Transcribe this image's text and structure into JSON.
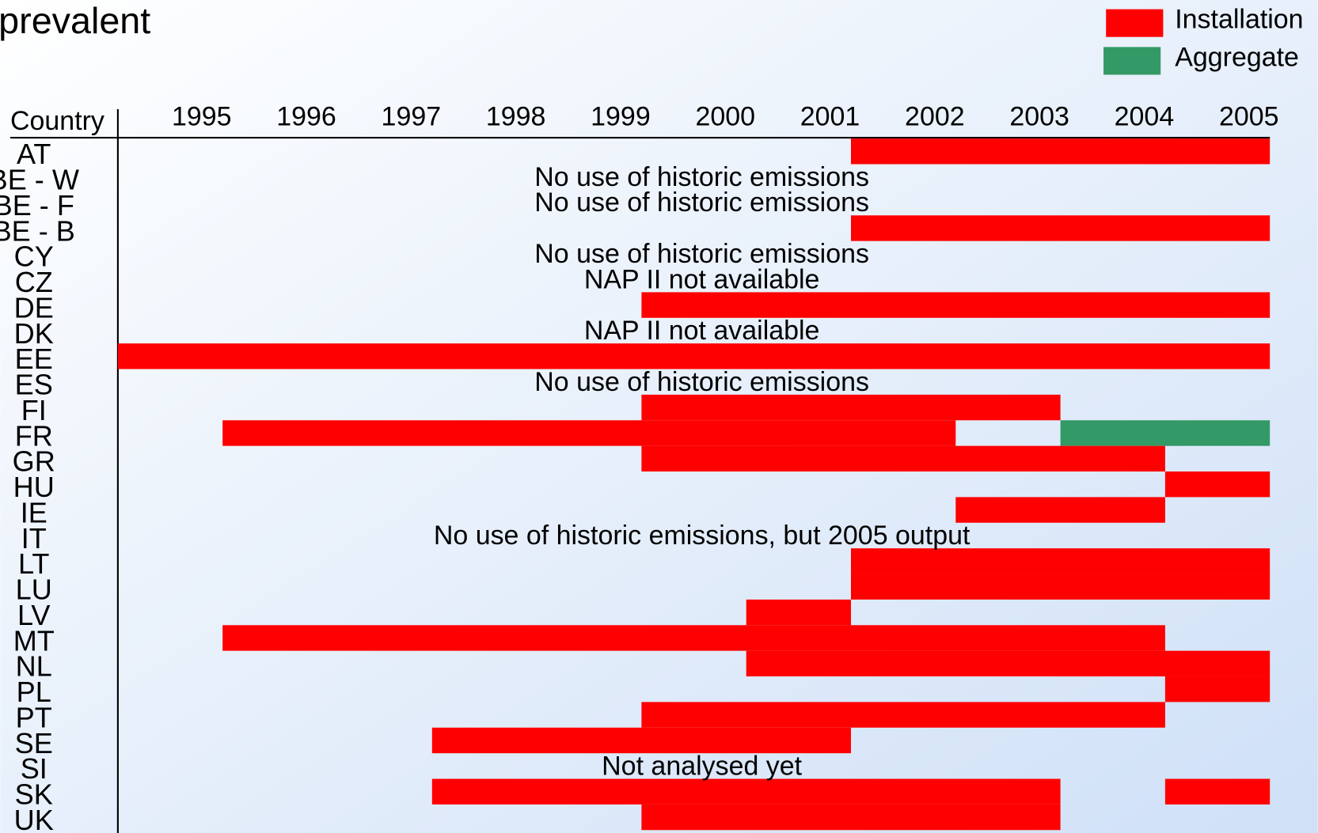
{
  "chart_data": {
    "type": "gantt",
    "title": "prevalent",
    "row_header": "Country",
    "xlim": [
      1995,
      2006
    ],
    "xticks": [
      1995,
      1996,
      1997,
      1998,
      1999,
      2000,
      2001,
      2002,
      2003,
      2004,
      2005
    ],
    "series": [
      {
        "name": "Installation",
        "color": "#ff0000"
      },
      {
        "name": "Aggregate",
        "color": "#339966"
      }
    ],
    "rows": [
      {
        "label": "AT",
        "installation": [
          [
            2002,
            2006
          ]
        ]
      },
      {
        "label": "BE - W",
        "note": "No use of historic emissions"
      },
      {
        "label": "BE - F",
        "note": "No use of historic emissions"
      },
      {
        "label": "BE - B",
        "installation": [
          [
            2002,
            2006
          ]
        ]
      },
      {
        "label": "CY",
        "note": "No use of historic emissions"
      },
      {
        "label": "CZ",
        "note": "NAP II not available"
      },
      {
        "label": "DE",
        "installation": [
          [
            2000,
            2006
          ]
        ]
      },
      {
        "label": "DK",
        "note": "NAP II not available"
      },
      {
        "label": "EE",
        "installation": [
          [
            1995,
            2006
          ]
        ]
      },
      {
        "label": "ES",
        "note": "No use of historic emissions"
      },
      {
        "label": "FI",
        "installation": [
          [
            2000,
            2004
          ]
        ]
      },
      {
        "label": "FR",
        "installation": [
          [
            1996,
            2003
          ]
        ],
        "aggregate": [
          [
            2004,
            2006
          ]
        ]
      },
      {
        "label": "GR",
        "installation": [
          [
            2000,
            2005
          ]
        ]
      },
      {
        "label": "HU",
        "installation": [
          [
            2005,
            2006
          ]
        ]
      },
      {
        "label": "IE",
        "installation": [
          [
            2003,
            2005
          ]
        ]
      },
      {
        "label": "IT",
        "note": "No use of historic emissions, but 2005 output"
      },
      {
        "label": "LT",
        "installation": [
          [
            2002,
            2006
          ]
        ]
      },
      {
        "label": "LU",
        "installation": [
          [
            2002,
            2006
          ]
        ]
      },
      {
        "label": "LV",
        "installation": [
          [
            2001,
            2002
          ]
        ]
      },
      {
        "label": "MT",
        "installation": [
          [
            1996,
            2005
          ]
        ]
      },
      {
        "label": "NL",
        "installation": [
          [
            2001,
            2006
          ]
        ]
      },
      {
        "label": "PL",
        "installation": [
          [
            2005,
            2006
          ]
        ]
      },
      {
        "label": "PT",
        "installation": [
          [
            2000,
            2005
          ]
        ]
      },
      {
        "label": "SE",
        "installation": [
          [
            1998,
            2002
          ]
        ]
      },
      {
        "label": "SI",
        "note": "Not analysed yet"
      },
      {
        "label": "SK",
        "installation": [
          [
            1998,
            2004
          ],
          [
            2005,
            2006
          ]
        ]
      },
      {
        "label": "UK",
        "installation": [
          [
            2000,
            2004
          ]
        ]
      }
    ]
  }
}
